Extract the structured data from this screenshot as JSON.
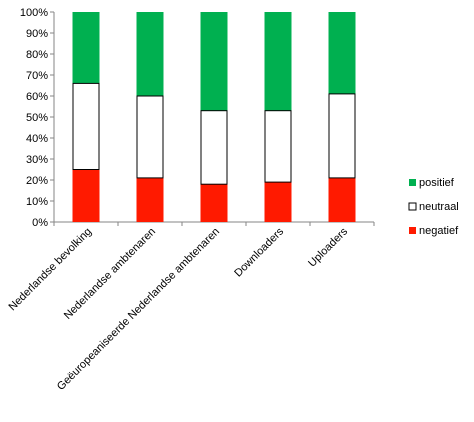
{
  "chart_data": {
    "type": "bar",
    "stacked": true,
    "percent": true,
    "categories": [
      "Nederlandse bevolking",
      "Nederlandse ambtenaren",
      "Geëuropeaniseerde Nederlandse ambtenaren",
      "Downloaders",
      "Uploaders"
    ],
    "series": [
      {
        "name": "negatief",
        "color": "#ff1a00",
        "values": [
          25,
          21,
          18,
          19,
          21
        ]
      },
      {
        "name": "neutraal",
        "color": "#ffffff",
        "values": [
          41,
          39,
          35,
          34,
          40
        ]
      },
      {
        "name": "positief",
        "color": "#00b050",
        "values": [
          34,
          40,
          47,
          47,
          39
        ]
      }
    ],
    "legend_order": [
      "positief",
      "neutraal",
      "negatief"
    ],
    "legend_position": "right",
    "y_ticks": [
      "0%",
      "10%",
      "20%",
      "30%",
      "40%",
      "50%",
      "60%",
      "70%",
      "80%",
      "90%",
      "100%"
    ],
    "ylim": [
      0,
      100
    ],
    "grid": false,
    "title": "",
    "xlabel": "",
    "ylabel": ""
  }
}
